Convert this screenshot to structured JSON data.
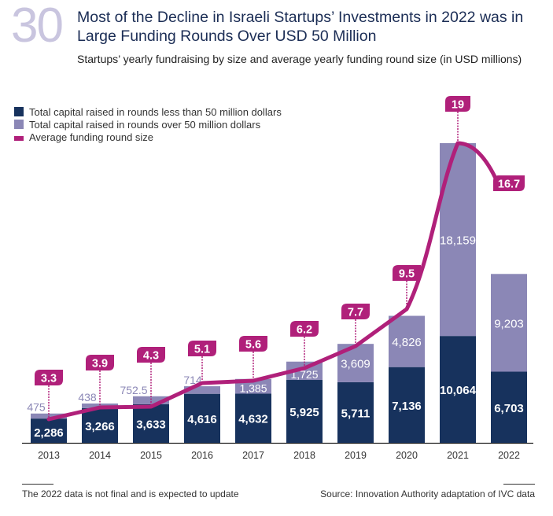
{
  "header": {
    "figure_number": "30",
    "title": "Most of the Decline in Israeli Startups’ Investments in 2022 was in Large Funding Rounds Over USD 50 Million",
    "subtitle": "Startups’ yearly fundraising by size and average yearly funding round size (in USD millions)"
  },
  "colors": {
    "small_rounds": "#17325d",
    "large_rounds": "#8b87b6",
    "average_line": "#b0207a",
    "figure_number": "#c9c5df"
  },
  "legend": [
    {
      "label": "Total capital raised in rounds less than 50 million dollars",
      "swatch": "small_rounds"
    },
    {
      "label": "Total capital raised in rounds over 50 million dollars",
      "swatch": "large_rounds"
    },
    {
      "label": "Average funding round size",
      "swatch": "average_line"
    }
  ],
  "chart_data": {
    "type": "bar",
    "stacked": true,
    "title": "Startups’ yearly fundraising by size and average yearly funding round size (in USD millions)",
    "xlabel": "",
    "ylabel": "",
    "categories": [
      "2013",
      "2014",
      "2015",
      "2016",
      "2017",
      "2018",
      "2019",
      "2020",
      "2021",
      "2022"
    ],
    "series": [
      {
        "name": "Total capital raised in rounds less than 50 million dollars",
        "type": "bar",
        "values": [
          2286,
          3266,
          3633,
          4616,
          4632,
          5925,
          5711,
          7136,
          10064,
          6703
        ],
        "labels": [
          "2,286",
          "3,266",
          "3,633",
          "4,616",
          "4,632",
          "5,925",
          "5,711",
          "7,136",
          "10,064",
          "6,703"
        ]
      },
      {
        "name": "Total capital raised in rounds over 50 million dollars",
        "type": "bar",
        "values": [
          475,
          438,
          752.5,
          714,
          1385,
          1725,
          3609,
          4826,
          18159,
          9203
        ],
        "labels": [
          "475",
          "438",
          "752.5",
          "714",
          "1,385",
          "1,725",
          "3,609",
          "4,826",
          "18,159",
          "9,203"
        ]
      },
      {
        "name": "Average funding round size",
        "type": "line",
        "values": [
          3.3,
          3.9,
          4.3,
          5.1,
          5.6,
          6.2,
          7.7,
          9.5,
          19,
          16.7
        ],
        "labels": [
          "3.3",
          "3.9",
          "4.3",
          "5.1",
          "5.6",
          "6.2",
          "7.7",
          "9.5",
          "19",
          "16.7"
        ]
      }
    ],
    "ylim": [
      0,
      28500
    ],
    "grid": false,
    "legend_position": "top-left"
  },
  "footer": {
    "note": "The 2022 data is not final and is expected to update",
    "source": "Source: Innovation Authority adaptation of IVC data"
  }
}
